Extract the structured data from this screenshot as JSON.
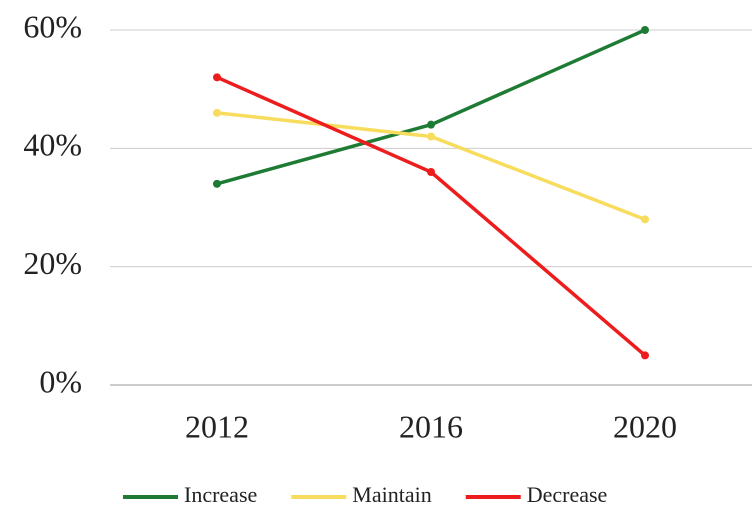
{
  "chart_data": {
    "type": "line",
    "categories": [
      "2012",
      "2016",
      "2020"
    ],
    "series": [
      {
        "name": "Increase",
        "color": "#1e7b34",
        "values": [
          34,
          44,
          60
        ]
      },
      {
        "name": "Maintain",
        "color": "#f7dc5e",
        "values": [
          46,
          42,
          28
        ]
      },
      {
        "name": "Decrease",
        "color": "#ee1d1d",
        "values": [
          52,
          36,
          5
        ]
      }
    ],
    "ylim": [
      0,
      60
    ],
    "yticks": [
      {
        "value": 0,
        "label": "0%"
      },
      {
        "value": 20,
        "label": "20%"
      },
      {
        "value": 40,
        "label": "40%"
      },
      {
        "value": 60,
        "label": "60%"
      }
    ],
    "grid": true,
    "legend": "bottom"
  }
}
